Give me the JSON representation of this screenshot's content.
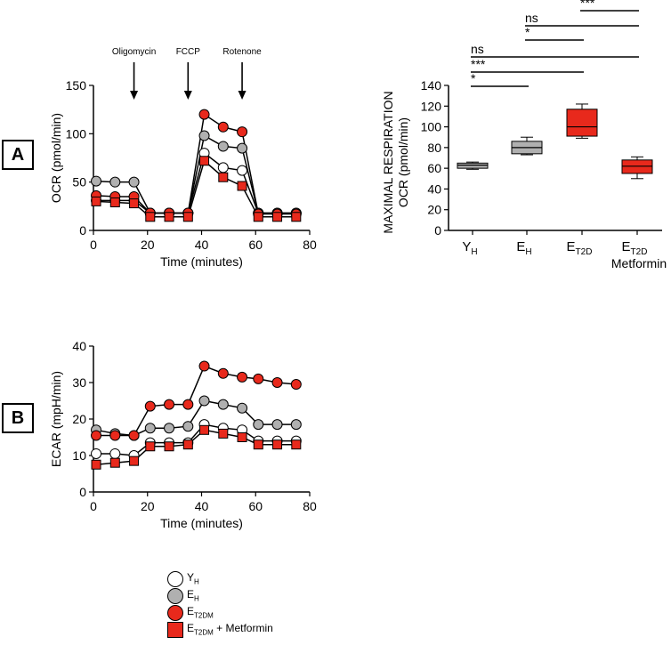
{
  "panel_labels": {
    "a": "A",
    "b": "B"
  },
  "treatments": [
    "Oligomycin",
    "FCCP",
    "Rotenone"
  ],
  "legend": [
    {
      "key": "YH",
      "main": "Y",
      "sub": "H",
      "suffix": "",
      "marker": "circle",
      "fill": "#ffffff"
    },
    {
      "key": "EH",
      "main": "E",
      "sub": "H",
      "suffix": "",
      "marker": "circle",
      "fill": "#b0b0b0"
    },
    {
      "key": "ET2DM",
      "main": "E",
      "sub": "T2DM",
      "suffix": "",
      "marker": "circle",
      "fill": "#e8291c"
    },
    {
      "key": "ET2DM_Met",
      "main": "E",
      "sub": "T2DM",
      "suffix": " + Metformin",
      "marker": "square",
      "fill": "#e8291c"
    }
  ],
  "chart_data": [
    {
      "id": "ocr",
      "type": "line",
      "xlabel": "Time (minutes)",
      "ylabel": "OCR (pmol/min)",
      "xlim": [
        0,
        80
      ],
      "ylim": [
        0,
        150
      ],
      "xticks": [
        0,
        20,
        40,
        60,
        80
      ],
      "yticks": [
        0,
        50,
        100,
        150
      ],
      "x": [
        1,
        8,
        15,
        21,
        28,
        35,
        41,
        48,
        55,
        61,
        68,
        75
      ],
      "series": [
        {
          "name": "YH",
          "marker": "circle",
          "fill": "#ffffff",
          "values": [
            31,
            31,
            31,
            18,
            18,
            18,
            80,
            65,
            62,
            18,
            18,
            18
          ]
        },
        {
          "name": "EH",
          "marker": "circle",
          "fill": "#b0b0b0",
          "values": [
            51,
            50,
            50,
            18,
            18,
            18,
            98,
            87,
            85,
            18,
            18,
            18
          ]
        },
        {
          "name": "ET2DM",
          "marker": "circle",
          "fill": "#e8291c",
          "values": [
            36,
            35,
            35,
            18,
            18,
            18,
            120,
            107,
            102,
            17,
            17,
            17
          ]
        },
        {
          "name": "ET2DM + Metformin",
          "marker": "square",
          "fill": "#e8291c",
          "values": [
            30,
            29,
            28,
            14,
            14,
            14,
            72,
            55,
            46,
            14,
            14,
            14
          ]
        }
      ],
      "annotations": [
        {
          "text": "Oligomycin",
          "x": 15
        },
        {
          "text": "FCCP",
          "x": 35
        },
        {
          "text": "Rotenone",
          "x": 55
        }
      ]
    },
    {
      "id": "maxresp",
      "type": "box",
      "ylabel_lines": [
        "MAXIMAL RESPIRATION",
        "OCR (pmol/min)"
      ],
      "ylim": [
        0,
        140
      ],
      "yticks": [
        0,
        20,
        40,
        60,
        80,
        100,
        120,
        140
      ],
      "categories": [
        {
          "main": "Y",
          "sub": "H",
          "line2": ""
        },
        {
          "main": "E",
          "sub": "H",
          "line2": ""
        },
        {
          "main": "E",
          "sub": "T2D",
          "line2": ""
        },
        {
          "main": "E",
          "sub": "T2D",
          "line2": "Metformin"
        }
      ],
      "boxes": [
        {
          "min": 59,
          "q1": 60,
          "median": 63,
          "q3": 65,
          "max": 66,
          "fill": "#b0b0b0"
        },
        {
          "min": 73,
          "q1": 74,
          "median": 80,
          "q3": 86,
          "max": 90,
          "fill": "#b0b0b0"
        },
        {
          "min": 89,
          "q1": 91,
          "median": 100,
          "q3": 117,
          "max": 122,
          "fill": "#e8291c"
        },
        {
          "min": 50,
          "q1": 55,
          "median": 62,
          "q3": 68,
          "max": 71,
          "fill": "#e8291c"
        }
      ],
      "significance": [
        {
          "label": "***",
          "from": 2,
          "to": 3,
          "level": 0
        },
        {
          "label": "ns",
          "from": 1,
          "to": 3,
          "level": 1
        },
        {
          "label": "*",
          "from": 1,
          "to": 2,
          "level": 2
        },
        {
          "label": "ns",
          "from": 0,
          "to": 3,
          "level": 3
        },
        {
          "label": "***",
          "from": 0,
          "to": 2,
          "level": 4
        },
        {
          "label": "*",
          "from": 0,
          "to": 1,
          "level": 5
        }
      ]
    },
    {
      "id": "ecar",
      "type": "line",
      "xlabel": "Time (minutes)",
      "ylabel": "ECAR (mpH/min)",
      "xlim": [
        0,
        80
      ],
      "ylim": [
        0,
        40
      ],
      "xticks": [
        0,
        20,
        40,
        60,
        80
      ],
      "yticks": [
        0,
        10,
        20,
        30,
        40
      ],
      "x": [
        1,
        8,
        15,
        21,
        28,
        35,
        41,
        48,
        55,
        61,
        68,
        75
      ],
      "series": [
        {
          "name": "EH",
          "marker": "circle",
          "fill": "#b0b0b0",
          "values": [
            17,
            16,
            15.5,
            17.5,
            17.5,
            18,
            25,
            24,
            23,
            18.5,
            18.5,
            18.5
          ]
        },
        {
          "name": "ET2DM",
          "marker": "circle",
          "fill": "#e8291c",
          "values": [
            15.5,
            15.5,
            15.5,
            23.5,
            24,
            24,
            34.5,
            32.5,
            31.5,
            31,
            30,
            29.5
          ]
        },
        {
          "name": "YH",
          "marker": "circle",
          "fill": "#ffffff",
          "values": [
            10.5,
            10.5,
            10,
            13.5,
            13.5,
            13.5,
            18.5,
            17.5,
            17,
            14,
            14,
            14
          ]
        },
        {
          "name": "ET2DM + Metformin",
          "marker": "square",
          "fill": "#e8291c",
          "values": [
            7.5,
            8,
            8.5,
            12.5,
            12.5,
            13,
            17,
            16,
            15,
            13,
            13,
            13
          ]
        }
      ]
    }
  ]
}
